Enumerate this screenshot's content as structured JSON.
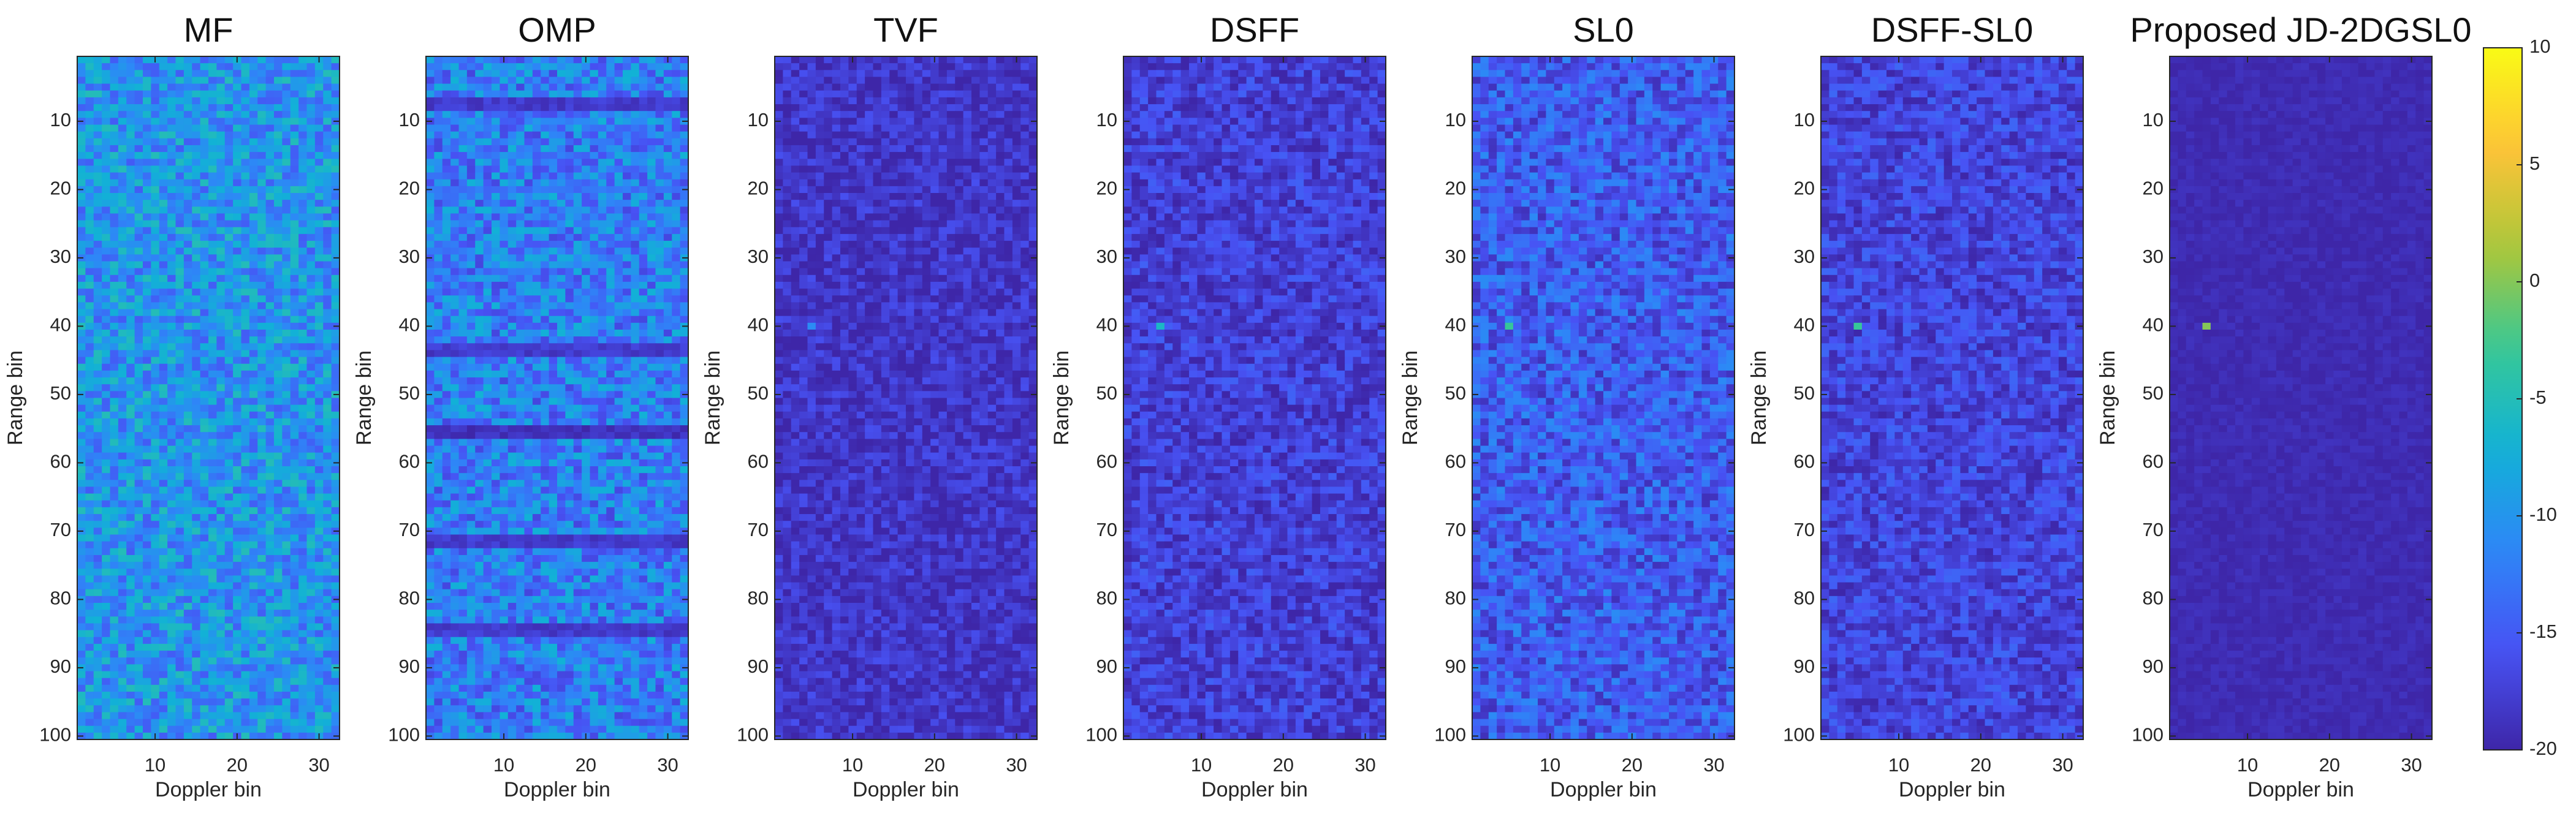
{
  "chart_data": [
    {
      "type": "heatmap",
      "title": "MF",
      "xlabel": "Doppler bin",
      "ylabel": "Range bin",
      "xlim": [
        1,
        32
      ],
      "ylim": [
        1,
        100
      ],
      "xticks": [
        10,
        20,
        30
      ],
      "yticks": [
        10,
        20,
        30,
        40,
        50,
        60,
        70,
        80,
        90,
        100
      ],
      "rows": 100,
      "cols": 32,
      "background_level_db": -10,
      "variation_db": 5,
      "horizontal_bands": [],
      "peaks": []
    },
    {
      "type": "heatmap",
      "title": "OMP",
      "xlabel": "Doppler bin",
      "ylabel": "Range bin",
      "xlim": [
        1,
        32
      ],
      "ylim": [
        1,
        100
      ],
      "xticks": [
        10,
        20,
        30
      ],
      "yticks": [
        10,
        20,
        30,
        40,
        50,
        60,
        70,
        80,
        90,
        100
      ],
      "rows": 100,
      "cols": 32,
      "background_level_db": -12,
      "variation_db": 5,
      "horizontal_bands": [
        {
          "rows": [
            7,
            8
          ],
          "level_db": -18
        },
        {
          "rows": [
            20
          ],
          "level_db": -13
        },
        {
          "rows": [
            43,
            44
          ],
          "level_db": -18
        },
        {
          "rows": [
            55,
            56
          ],
          "level_db": -19
        },
        {
          "rows": [
            71,
            72
          ],
          "level_db": -18
        },
        {
          "rows": [
            84,
            85
          ],
          "level_db": -18
        }
      ],
      "peaks": []
    },
    {
      "type": "heatmap",
      "title": "TVF",
      "xlabel": "Doppler bin",
      "ylabel": "Range bin",
      "xlim": [
        1,
        32
      ],
      "ylim": [
        1,
        100
      ],
      "xticks": [
        10,
        20,
        30
      ],
      "yticks": [
        10,
        20,
        30,
        40,
        50,
        60,
        70,
        80,
        90,
        100
      ],
      "rows": 100,
      "cols": 32,
      "background_level_db": -18.5,
      "variation_db": 2.5,
      "horizontal_bands": [],
      "peaks": [
        {
          "x": 5,
          "y": 40,
          "value_db": -11
        }
      ]
    },
    {
      "type": "heatmap",
      "title": "DSFF",
      "xlabel": "Doppler bin",
      "ylabel": "Range bin",
      "xlim": [
        1,
        32
      ],
      "ylim": [
        1,
        100
      ],
      "xticks": [
        10,
        20,
        30
      ],
      "yticks": [
        10,
        20,
        30,
        40,
        50,
        60,
        70,
        80,
        90,
        100
      ],
      "rows": 100,
      "cols": 32,
      "background_level_db": -17.5,
      "variation_db": 3,
      "horizontal_bands": [],
      "peaks": [
        {
          "x": 5,
          "y": 40,
          "value_db": -6
        }
      ]
    },
    {
      "type": "heatmap",
      "title": "SL0",
      "xlabel": "Doppler bin",
      "ylabel": "Range bin",
      "xlim": [
        1,
        32
      ],
      "ylim": [
        1,
        100
      ],
      "xticks": [
        10,
        20,
        30
      ],
      "yticks": [
        10,
        20,
        30,
        40,
        50,
        60,
        70,
        80,
        90,
        100
      ],
      "rows": 100,
      "cols": 32,
      "background_level_db": -15,
      "variation_db": 4,
      "horizontal_bands": [],
      "peaks": [
        {
          "x": 5,
          "y": 40,
          "value_db": -3
        }
      ]
    },
    {
      "type": "heatmap",
      "title": "DSFF-SL0",
      "xlabel": "Doppler bin",
      "ylabel": "Range bin",
      "xlim": [
        1,
        32
      ],
      "ylim": [
        1,
        100
      ],
      "xticks": [
        10,
        20,
        30
      ],
      "yticks": [
        10,
        20,
        30,
        40,
        50,
        60,
        70,
        80,
        90,
        100
      ],
      "rows": 100,
      "cols": 32,
      "background_level_db": -17,
      "variation_db": 3,
      "horizontal_bands": [],
      "peaks": [
        {
          "x": 5,
          "y": 40,
          "value_db": -3
        }
      ]
    },
    {
      "type": "heatmap",
      "title": "Proposed JD-2DGSL0",
      "xlabel": "Doppler bin",
      "ylabel": "Range bin",
      "xlim": [
        1,
        32
      ],
      "ylim": [
        1,
        100
      ],
      "xticks": [
        10,
        20,
        30
      ],
      "yticks": [
        10,
        20,
        30,
        40,
        50,
        60,
        70,
        80,
        90,
        100
      ],
      "rows": 100,
      "cols": 32,
      "background_level_db": -19.5,
      "variation_db": 0.8,
      "horizontal_bands": [],
      "peaks": [
        {
          "x": 5,
          "y": 40,
          "value_db": 0
        }
      ]
    }
  ],
  "colorbar": {
    "min": -20,
    "max": 10,
    "ticks": [
      {
        "value": 10,
        "label": "10"
      },
      {
        "value": 5,
        "label": "5"
      },
      {
        "value": 0,
        "label": "0"
      },
      {
        "value": -5,
        "label": "-5"
      },
      {
        "value": -10,
        "label": "-10"
      },
      {
        "value": -15,
        "label": "-15"
      },
      {
        "value": -20,
        "label": "-20"
      }
    ],
    "colormap": "parula"
  },
  "colors": {
    "axis": "#262626",
    "background": "#ffffff"
  }
}
